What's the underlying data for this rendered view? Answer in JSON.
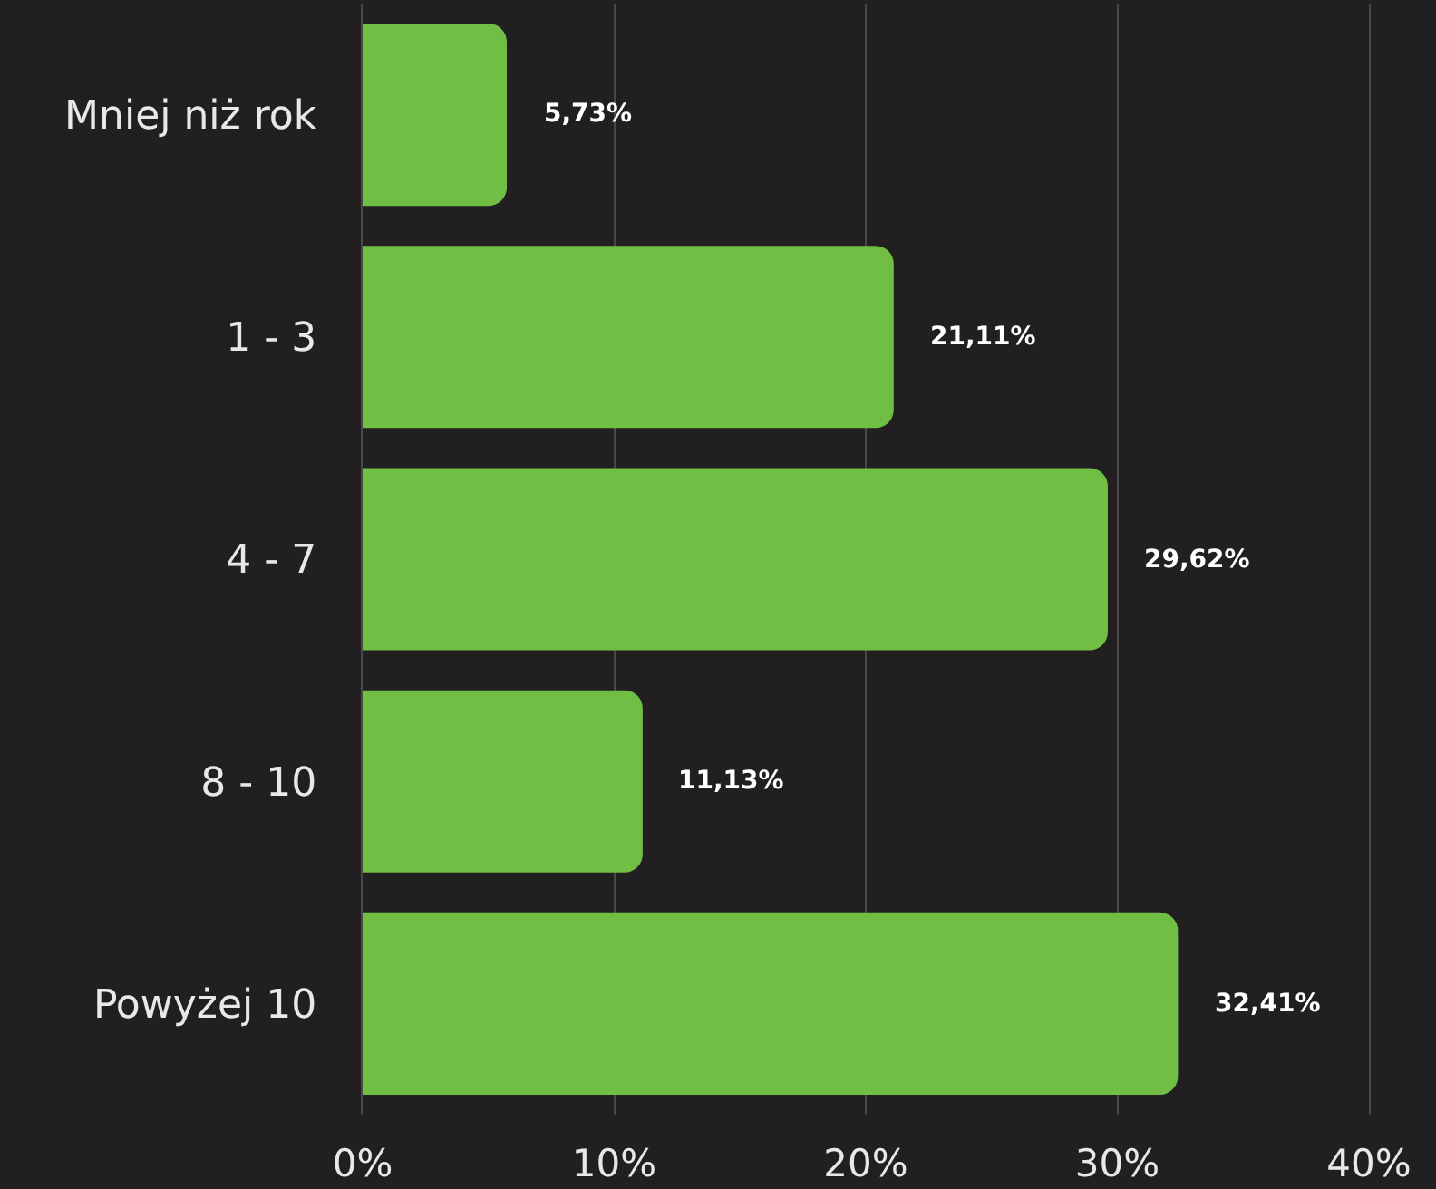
{
  "chart_data": {
    "type": "bar",
    "orientation": "horizontal",
    "categories": [
      "Mniej niż rok",
      "1 - 3",
      "4 - 7",
      "8 - 10",
      "Powyżej 10"
    ],
    "values": [
      5.73,
      21.11,
      29.62,
      11.13,
      32.41
    ],
    "value_labels": [
      "5,73%",
      "21,11%",
      "29,62%",
      "11,13%",
      "32,41%"
    ],
    "color": "#70be44",
    "xlim": [
      0,
      40
    ],
    "xticks": [
      {
        "value": 0,
        "label": "0%"
      },
      {
        "value": 10,
        "label": "10%"
      },
      {
        "value": 20,
        "label": "20%"
      },
      {
        "value": 30,
        "label": "30%"
      },
      {
        "value": 40,
        "label": "40%"
      }
    ],
    "grid": "x"
  }
}
